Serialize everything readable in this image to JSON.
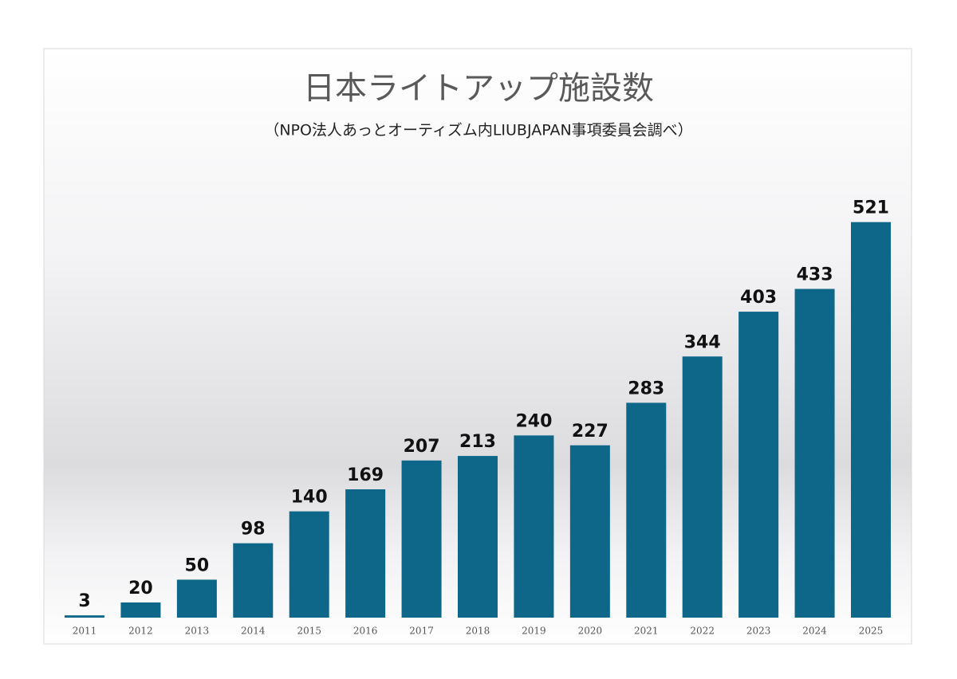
{
  "chart_data": {
    "type": "bar",
    "title": "日本ライトアップ施設数",
    "subtitle": "（NPO法人あっとオーティズム内LIUBJAPAN事項委員会調べ）",
    "categories": [
      "2011",
      "2012",
      "2013",
      "2014",
      "2015",
      "2016",
      "2017",
      "2018",
      "2019",
      "2020",
      "2021",
      "2022",
      "2023",
      "2024",
      "2025"
    ],
    "values": [
      3,
      20,
      50,
      98,
      140,
      169,
      207,
      213,
      240,
      227,
      283,
      344,
      403,
      433,
      521
    ],
    "color": "#0e6688",
    "ylim": [
      0,
      570
    ]
  }
}
